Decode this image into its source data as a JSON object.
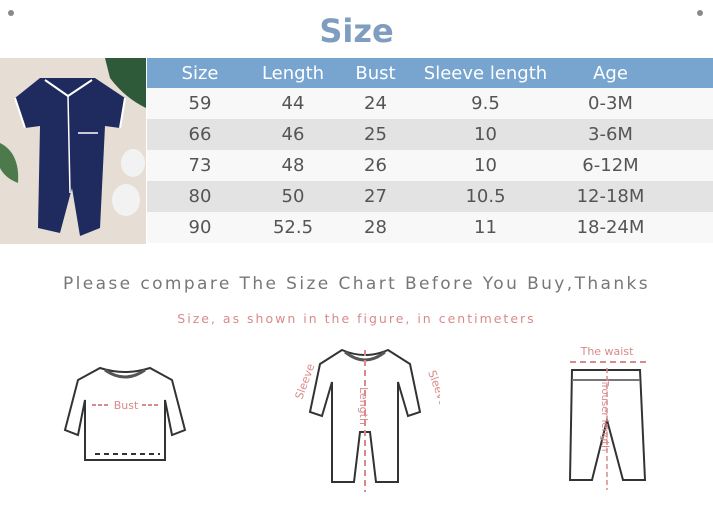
{
  "title": "Size",
  "table": {
    "headers": [
      "Size",
      "Length",
      "Bust",
      "Sleeve length",
      "Age"
    ],
    "rows": [
      [
        "59",
        "44",
        "24",
        "9.5",
        "0-3M"
      ],
      [
        "66",
        "46",
        "25",
        "10",
        "3-6M"
      ],
      [
        "73",
        "48",
        "26",
        "10",
        "6-12M"
      ],
      [
        "80",
        "50",
        "27",
        "10.5",
        "12-18M"
      ],
      [
        "90",
        "52.5",
        "28",
        "11",
        "18-24M"
      ]
    ]
  },
  "notes": {
    "compare": "Please compare The Size Chart Before You Buy,Thanks",
    "units": "Size, as shown in the figure, in centimeters"
  },
  "diagram_labels": {
    "bust": "Bust",
    "sleeve": "Sleeve",
    "length": "Length",
    "waist": "The waist",
    "trouser_length": "Trouser length"
  },
  "colors": {
    "header": "#77a5cf",
    "title": "#7f9dbf",
    "accent": "#d98a8a",
    "romper": "#1f2a5e"
  }
}
